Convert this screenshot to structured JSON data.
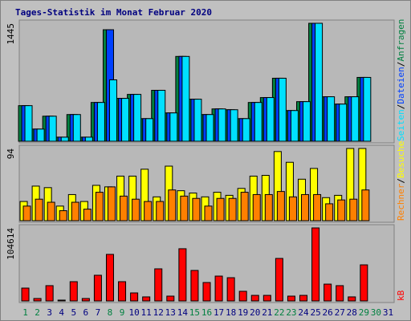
{
  "chart_data": [
    {
      "type": "bar",
      "title": "Tages-Statistik im Monat Februar 2020",
      "ylim": [
        0,
        1445
      ],
      "yticks": [
        1445
      ],
      "legend_separator": "/",
      "series": [
        {
          "name": "Anfragen",
          "color": "#008040",
          "values": [
            436,
            149,
            307,
            50,
            327,
            50,
            475,
            1366,
            525,
            574,
            277,
            624,
            347,
            1039,
            515,
            327,
            396,
            386,
            277,
            475,
            535,
            772,
            376,
            485,
            1445,
            545,
            455,
            545,
            782,
            null,
            null
          ]
        },
        {
          "name": "Dateien",
          "color": "#0040ff",
          "values": [
            436,
            149,
            307,
            50,
            327,
            50,
            475,
            1366,
            525,
            574,
            277,
            624,
            347,
            1039,
            515,
            327,
            396,
            386,
            277,
            475,
            535,
            772,
            376,
            485,
            1445,
            545,
            455,
            545,
            782,
            null,
            null
          ]
        },
        {
          "name": "Seiten",
          "color": "#00e0ff",
          "values": [
            436,
            149,
            307,
            50,
            327,
            50,
            475,
            752,
            525,
            574,
            277,
            624,
            347,
            1039,
            515,
            327,
            396,
            386,
            277,
            475,
            535,
            772,
            376,
            485,
            1445,
            545,
            455,
            545,
            782,
            null,
            null
          ]
        }
      ]
    },
    {
      "type": "bar",
      "ylim": [
        0,
        94
      ],
      "yticks": [
        94
      ],
      "legend_separator": "/",
      "series": [
        {
          "name": "Besuche",
          "color": "#ffff00",
          "values": [
            25,
            45,
            43,
            19,
            34,
            25,
            46,
            44,
            58,
            58,
            67,
            31,
            71,
            39,
            36,
            31,
            37,
            33,
            42,
            58,
            59,
            90,
            76,
            54,
            68,
            30,
            33,
            94,
            94,
            null,
            null
          ]
        },
        {
          "name": "Rechner",
          "color": "#ff8000",
          "values": [
            19,
            28,
            24,
            13,
            24,
            15,
            37,
            44,
            32,
            28,
            25,
            25,
            40,
            32,
            29,
            19,
            29,
            29,
            37,
            34,
            34,
            38,
            31,
            34,
            34,
            22,
            27,
            28,
            40,
            null,
            null
          ]
        }
      ]
    },
    {
      "type": "bar",
      "ylim": [
        0,
        104614
      ],
      "yticks": [
        104614
      ],
      "legend_separator": "/",
      "categories": [
        "1",
        "2",
        "3",
        "4",
        "5",
        "6",
        "7",
        "8",
        "9",
        "10",
        "11",
        "12",
        "13",
        "14",
        "15",
        "16",
        "17",
        "18",
        "19",
        "20",
        "21",
        "22",
        "23",
        "24",
        "25",
        "26",
        "27",
        "28",
        "29",
        "30",
        "31"
      ],
      "category_colors": [
        "#008040",
        "#008040",
        "#000080",
        "#000080",
        "#000080",
        "#000080",
        "#000080",
        "#008040",
        "#008040",
        "#000080",
        "#000080",
        "#000080",
        "#000080",
        "#000080",
        "#008040",
        "#008040",
        "#000080",
        "#000080",
        "#000080",
        "#000080",
        "#000080",
        "#008040",
        "#008040",
        "#000080",
        "#000080",
        "#000080",
        "#000080",
        "#000080",
        "#008040",
        "#008040",
        "#000080"
      ],
      "series": [
        {
          "name": "kB",
          "color": "#ff0000",
          "values": [
            18400,
            3500,
            21900,
            1200,
            27600,
            3500,
            36800,
            66700,
            27600,
            11500,
            5800,
            46000,
            6900,
            74800,
            43700,
            26400,
            35600,
            33300,
            13800,
            8000,
            8000,
            60900,
            6900,
            8000,
            104614,
            24100,
            21900,
            5800,
            51700,
            null,
            null
          ]
        }
      ]
    }
  ]
}
